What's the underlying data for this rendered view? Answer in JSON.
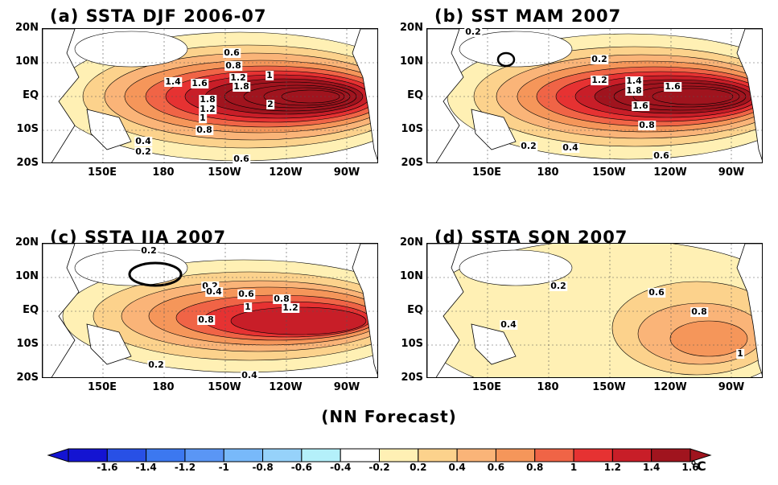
{
  "panels": [
    {
      "title": "(a) SSTA DJF 2006-07",
      "contour_labels": [
        "0.6",
        "0.8",
        "1.2",
        "1.8",
        "1",
        "1.4",
        "1.6",
        "1.8",
        "1.2",
        "1",
        "2",
        "0.8",
        "0.4",
        "0.2",
        "0.6"
      ],
      "peak_anomaly": 2.0
    },
    {
      "title": "(b) SST  MAM 2007",
      "contour_labels": [
        "0.2",
        "0.2",
        "1.2",
        "1.4",
        "1.8",
        "1.6",
        "1.6",
        "0.8",
        "0.2",
        "0.4",
        "0.6"
      ],
      "peak_anomaly": 1.8
    },
    {
      "title": "(c) SSTA JJA 2007",
      "contour_labels": [
        "0.2",
        "0.2",
        "0.4",
        "0.6",
        "0.8",
        "1",
        "1.2",
        "0.8",
        "0.2",
        "0.4"
      ],
      "peak_anomaly": 1.2
    },
    {
      "title": "(d) SSTA SON 2007",
      "contour_labels": [
        "0.2",
        "0.6",
        "0.8",
        "0.4",
        "1"
      ],
      "peak_anomaly": 1.0
    }
  ],
  "lat_labels": [
    "20N",
    "10N",
    "EQ",
    "10S",
    "20S"
  ],
  "lon_labels": [
    "150E",
    "180",
    "150W",
    "120W",
    "90W"
  ],
  "footer": "(NN Forecast)",
  "colorbar": {
    "labels": [
      "-1.6",
      "-1.4",
      "-1.2",
      "-1",
      "-0.8",
      "-0.6",
      "-0.4",
      "-0.2",
      "0.2",
      "0.4",
      "0.6",
      "0.8",
      "1",
      "1.2",
      "1.4",
      "1.6"
    ],
    "unit": "°C",
    "colors": [
      "#1414d2",
      "#2850e6",
      "#3c78f0",
      "#5a96f5",
      "#78b9fa",
      "#96d2fa",
      "#b4f0fa",
      "#ffffff",
      "#fff0b4",
      "#fcd28c",
      "#fab478",
      "#f5965a",
      "#f06446",
      "#e63232",
      "#c81e28",
      "#a0141e"
    ]
  }
}
